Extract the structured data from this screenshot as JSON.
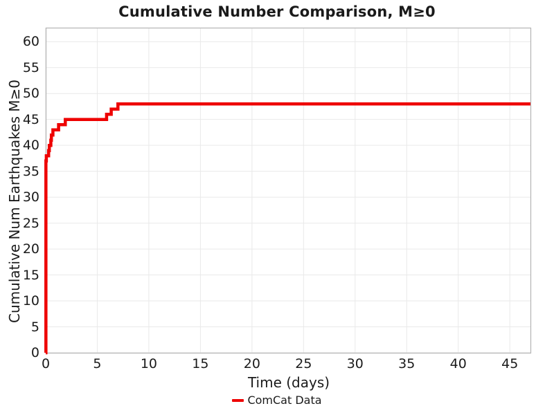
{
  "colors": {
    "line": "#ee0000",
    "grid": "#e9e9e9",
    "frame": "#b3b3b3",
    "text": "#1a1a1a",
    "background": "#ffffff"
  },
  "chart_data": {
    "type": "line",
    "step_mode": "post",
    "title": "Cumulative Number Comparison, M≥0",
    "xlabel": "Time (days)",
    "ylabel": "Cumulative Num Earthquakes M≥0",
    "xlim": [
      0,
      47
    ],
    "ylim": [
      0,
      62.7
    ],
    "xticks": [
      0,
      5,
      10,
      15,
      20,
      25,
      30,
      35,
      40,
      45
    ],
    "yticks": [
      0,
      5,
      10,
      15,
      20,
      25,
      30,
      35,
      40,
      45,
      50,
      55,
      60
    ],
    "grid": true,
    "legend_position": "bottom-center",
    "series": [
      {
        "name": "ComCat Data",
        "color": "#ee0000",
        "line_width": 4.5,
        "points": [
          [
            0,
            0
          ],
          [
            0.02,
            37
          ],
          [
            0.06,
            38
          ],
          [
            0.28,
            39
          ],
          [
            0.35,
            40
          ],
          [
            0.5,
            41
          ],
          [
            0.55,
            42
          ],
          [
            0.7,
            43
          ],
          [
            1.25,
            44
          ],
          [
            1.9,
            45
          ],
          [
            5.9,
            46
          ],
          [
            6.35,
            47
          ],
          [
            7.0,
            48
          ],
          [
            47.0,
            48
          ]
        ]
      }
    ]
  }
}
